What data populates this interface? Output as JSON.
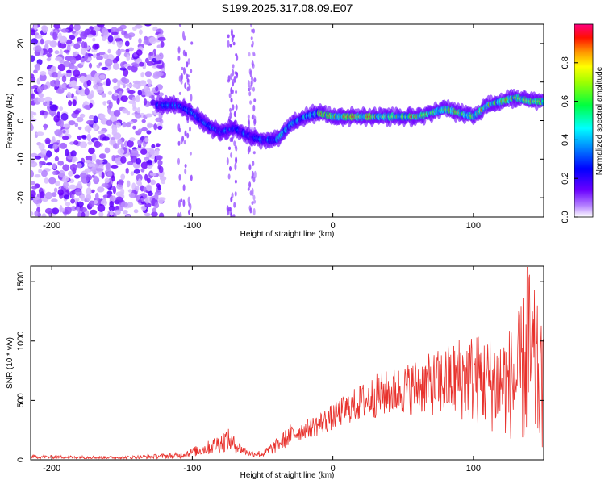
{
  "title": "S199.2025.317.08.09.E07",
  "chart_data": [
    {
      "type": "heatmap",
      "xlabel": "Height of straight line (km)",
      "ylabel": "Frequency (Hz)",
      "xlim": [
        -215,
        150
      ],
      "ylim": [
        -25,
        25
      ],
      "xticks": [
        -200,
        -100,
        0,
        100
      ],
      "yticks": [
        -20,
        -10,
        0,
        10,
        20
      ],
      "colorbar": {
        "label": "Normalized spectral amplitude",
        "range": [
          0,
          1
        ],
        "ticks": [
          "0.0",
          "0.2",
          "0.4",
          "0.6",
          "0.8"
        ],
        "tick_values": [
          0,
          0.2,
          0.4,
          0.6,
          0.8
        ],
        "colors": [
          "#ffffff",
          "#8000ff",
          "#0000ff",
          "#00ffff",
          "#00ff00",
          "#ffff00",
          "#ff8000",
          "#ff0000",
          "#ff0080"
        ]
      },
      "ridge": {
        "x": [
          -125,
          -110,
          -100,
          -90,
          -80,
          -70,
          -60,
          -50,
          -40,
          -30,
          -20,
          -10,
          0,
          10,
          20,
          30,
          40,
          50,
          60,
          70,
          80,
          90,
          100,
          110,
          120,
          130,
          140,
          150
        ],
        "y": [
          4,
          4,
          2,
          -1,
          -3,
          -2,
          -4,
          -5,
          -5,
          -1,
          1,
          2,
          1,
          1,
          1,
          1,
          1,
          1,
          1,
          2,
          3,
          2,
          1,
          4,
          5,
          6,
          5,
          5
        ]
      },
      "noise_region_x": [
        -215,
        -125
      ]
    },
    {
      "type": "line",
      "xlabel": "Height of straight line (km)",
      "ylabel": "SNR (10 * v/v)",
      "xlim": [
        -215,
        150
      ],
      "ylim": [
        0,
        1630
      ],
      "xticks": [
        -200,
        -100,
        0,
        100
      ],
      "yticks": [
        0,
        500,
        1000,
        1500
      ],
      "color": "#e8312c",
      "envelope": {
        "x": [
          -215,
          -150,
          -110,
          -90,
          -80,
          -75,
          -70,
          -60,
          -50,
          -40,
          -30,
          -20,
          -10,
          0,
          10,
          20,
          30,
          40,
          50,
          60,
          70,
          80,
          90,
          100,
          110,
          120,
          130,
          140,
          150
        ],
        "lo": [
          10,
          8,
          10,
          40,
          60,
          70,
          60,
          30,
          20,
          60,
          120,
          180,
          200,
          250,
          300,
          330,
          350,
          370,
          380,
          380,
          370,
          350,
          330,
          300,
          250,
          200,
          150,
          100,
          80
        ],
        "hi": [
          40,
          30,
          60,
          150,
          230,
          270,
          200,
          80,
          80,
          180,
          300,
          330,
          400,
          470,
          560,
          640,
          720,
          760,
          800,
          860,
          900,
          960,
          1050,
          1080,
          1050,
          1100,
          1150,
          1630,
          1050
        ]
      }
    }
  ]
}
